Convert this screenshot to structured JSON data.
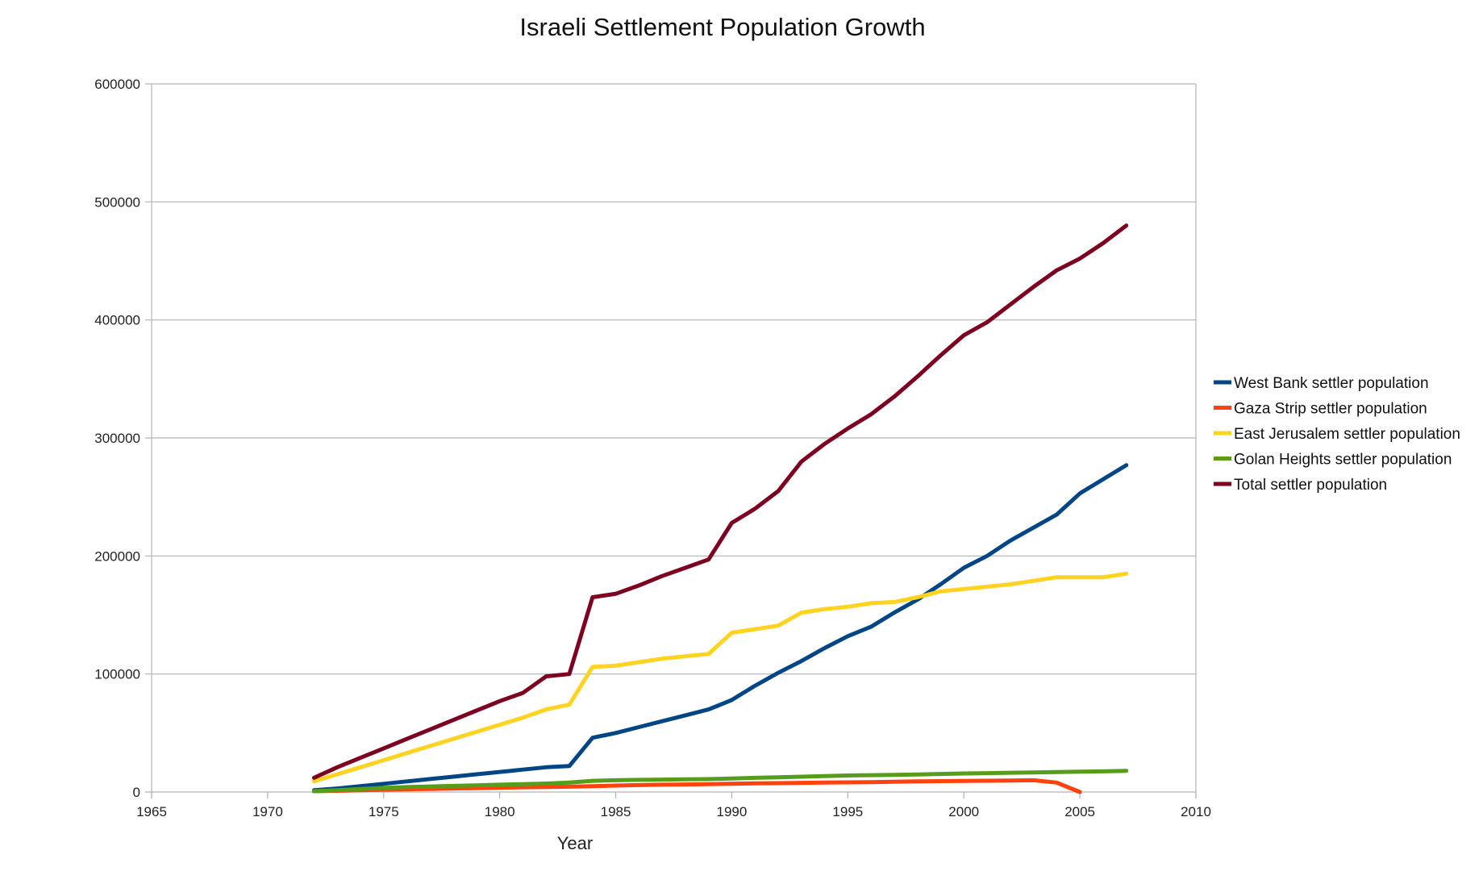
{
  "chart_data": {
    "type": "line",
    "title": "Israeli Settlement Population Growth",
    "xlabel": "Year",
    "ylabel": "",
    "xlim": [
      1965,
      2010
    ],
    "ylim": [
      0,
      600000
    ],
    "xticks": [
      "1965",
      "1970",
      "1975",
      "1980",
      "1985",
      "1990",
      "1995",
      "2000",
      "2005",
      "2010"
    ],
    "yticks": [
      "0",
      "100000",
      "200000",
      "300000",
      "400000",
      "500000",
      "600000"
    ],
    "grid": "horizontal",
    "legend_position": "right",
    "x": [
      1972,
      1973,
      1974,
      1975,
      1976,
      1977,
      1978,
      1979,
      1980,
      1981,
      1982,
      1983,
      1984,
      1985,
      1986,
      1987,
      1988,
      1989,
      1990,
      1991,
      1992,
      1993,
      1994,
      1995,
      1996,
      1997,
      1998,
      1999,
      2000,
      2001,
      2002,
      2003,
      2004,
      2005,
      2006,
      2007
    ],
    "series": [
      {
        "name": "West Bank settler population",
        "color": "#004586",
        "values": [
          1500,
          3000,
          5000,
          7000,
          9000,
          11000,
          13000,
          15000,
          17000,
          19000,
          21000,
          22000,
          46000,
          50000,
          55000,
          60000,
          65000,
          70000,
          78000,
          90000,
          101000,
          111000,
          122000,
          132000,
          140000,
          152000,
          163000,
          176000,
          190000,
          200000,
          213000,
          224000,
          235000,
          253000,
          265000,
          277000
        ]
      },
      {
        "name": "Gaza Strip settler population",
        "color": "#ff420e",
        "values": [
          700,
          1000,
          1500,
          2000,
          2300,
          2600,
          3000,
          3300,
          3700,
          4000,
          4300,
          4500,
          5000,
          5500,
          5900,
          6200,
          6400,
          6700,
          7000,
          7300,
          7500,
          7800,
          8000,
          8200,
          8400,
          8700,
          9000,
          9200,
          9400,
          9600,
          9800,
          10000,
          8000,
          0,
          null,
          null
        ]
      },
      {
        "name": "East Jerusalem settler population",
        "color": "#ffd320",
        "values": [
          9000,
          15000,
          21000,
          27000,
          33000,
          39000,
          45000,
          51000,
          57000,
          63000,
          70000,
          74000,
          106000,
          107000,
          110000,
          113000,
          115000,
          117000,
          135000,
          138000,
          141000,
          152000,
          155000,
          157000,
          160000,
          161000,
          165000,
          170000,
          172000,
          174000,
          176000,
          179000,
          182000,
          182000,
          182000,
          185000
        ]
      },
      {
        "name": "Golan Heights settler population",
        "color": "#579d1c",
        "values": [
          700,
          1500,
          2500,
          3500,
          4200,
          4700,
          5200,
          5700,
          6200,
          6700,
          7200,
          8000,
          9500,
          10000,
          10300,
          10500,
          10700,
          10900,
          11500,
          12000,
          12500,
          13000,
          13500,
          14000,
          14300,
          14500,
          14800,
          15300,
          15700,
          16000,
          16300,
          16600,
          16900,
          17200,
          17500,
          18000
        ]
      },
      {
        "name": "Total settler population",
        "color": "#7e0021",
        "values": [
          12000,
          21000,
          29000,
          37000,
          45000,
          53000,
          61000,
          69000,
          77000,
          84000,
          98000,
          100000,
          165000,
          168000,
          175000,
          183000,
          190000,
          197000,
          228000,
          240000,
          255000,
          280000,
          295000,
          308000,
          320000,
          335000,
          352000,
          370000,
          387000,
          398000,
          413000,
          428000,
          442000,
          452000,
          465000,
          480000
        ]
      }
    ]
  }
}
